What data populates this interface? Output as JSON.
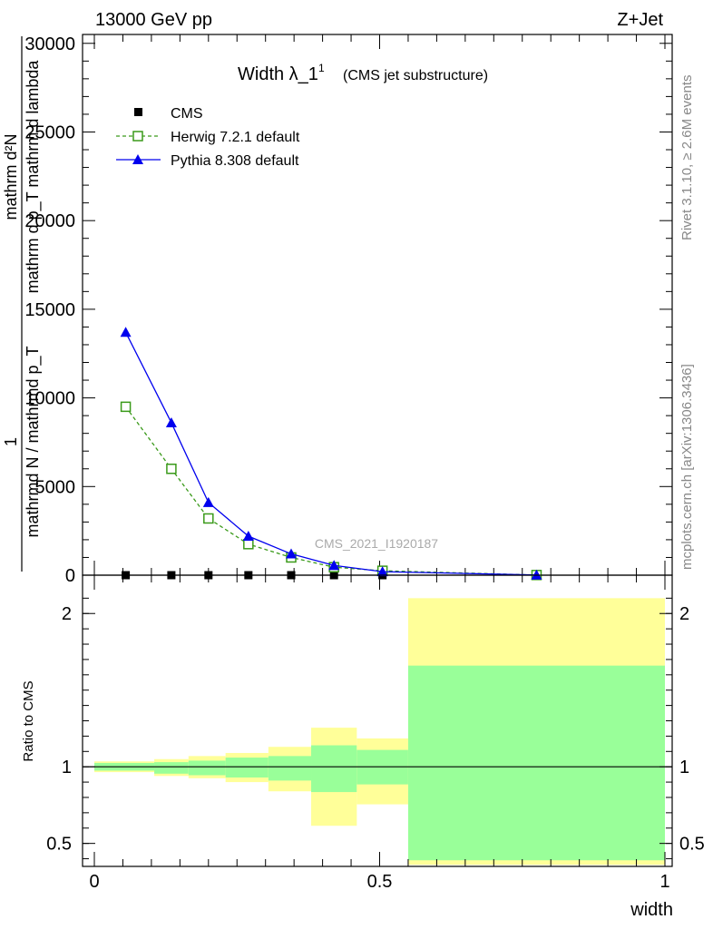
{
  "header": {
    "left": "13000 GeV pp",
    "right": "Z+Jet"
  },
  "side": {
    "rivet": "Rivet 3.1.10, ≥ 2.6M events",
    "mcplots": "mcplots.cern.ch [arXiv:1306.3436]"
  },
  "chart_data": [
    {
      "type": "line",
      "title": "Width λ_1",
      "title_sup": "1",
      "subtitle": "(CMS jet substructure)",
      "watermark": "CMS_2021_I1920187",
      "ylabel_numerator": "mathrm d²N",
      "ylabel_denominator": "mathrm d p_T mathrm d lambda",
      "ylabel_left_num": "1",
      "ylabel_left_den": "mathrmd N / mathrmd p_T",
      "xlim": [
        0,
        1
      ],
      "ylim": [
        0,
        30500
      ],
      "yticks": [
        0,
        5000,
        10000,
        15000,
        20000,
        25000,
        30000
      ],
      "ytick_labels": [
        "0",
        "5000",
        "10000",
        "15000",
        "20000",
        "25000",
        "30000"
      ],
      "legend": [
        "CMS",
        "Herwig 7.2.1 default",
        "Pythia 8.308 default"
      ],
      "legend_position": "top-left",
      "series": [
        {
          "name": "CMS",
          "color": "#000000",
          "marker": "square-filled",
          "x": [
            0.055,
            0.135,
            0.2,
            0.27,
            0.345,
            0.42,
            0.505,
            0.775
          ],
          "y": [
            0,
            0,
            0,
            0,
            0,
            0,
            0,
            0
          ]
        },
        {
          "name": "Herwig 7.2.1 default",
          "color": "#3a9a1a",
          "marker": "square-open",
          "dashed": true,
          "x": [
            0.055,
            0.135,
            0.2,
            0.27,
            0.345,
            0.42,
            0.505,
            0.775
          ],
          "y": [
            9500,
            6000,
            3200,
            1750,
            1000,
            450,
            250,
            10
          ]
        },
        {
          "name": "Pythia 8.308 default",
          "color": "#0000ee",
          "marker": "triangle-filled",
          "dashed": false,
          "x": [
            0.055,
            0.135,
            0.2,
            0.27,
            0.345,
            0.42,
            0.505,
            0.775
          ],
          "y": [
            13700,
            8600,
            4100,
            2200,
            1200,
            550,
            200,
            10
          ]
        }
      ]
    },
    {
      "type": "area",
      "ylabel": "Ratio to CMS",
      "xlabel": "width",
      "xlim": [
        0,
        1
      ],
      "ylim": [
        0.35,
        2.25
      ],
      "xticks": [
        0,
        0.5,
        1
      ],
      "xtick_labels": [
        "0",
        "0.5",
        "1"
      ],
      "yticks": [
        0.5,
        1,
        2
      ],
      "ytick_labels": [
        "0.5",
        "1",
        "2"
      ],
      "band_colors": {
        "outer": "#ffff99",
        "inner": "#99ff99"
      },
      "bins": [
        {
          "x0": 0.0,
          "x1": 0.105,
          "inner": [
            0.975,
            1.025
          ],
          "outer": [
            0.965,
            1.035
          ]
        },
        {
          "x0": 0.105,
          "x1": 0.165,
          "inner": [
            0.955,
            1.03
          ],
          "outer": [
            0.94,
            1.05
          ]
        },
        {
          "x0": 0.165,
          "x1": 0.23,
          "inner": [
            0.945,
            1.04
          ],
          "outer": [
            0.925,
            1.07
          ]
        },
        {
          "x0": 0.23,
          "x1": 0.305,
          "inner": [
            0.93,
            1.06
          ],
          "outer": [
            0.9,
            1.09
          ]
        },
        {
          "x0": 0.305,
          "x1": 0.38,
          "inner": [
            0.91,
            1.07
          ],
          "outer": [
            0.84,
            1.13
          ]
        },
        {
          "x0": 0.38,
          "x1": 0.46,
          "inner": [
            0.835,
            1.14
          ],
          "outer": [
            0.615,
            1.255
          ]
        },
        {
          "x0": 0.46,
          "x1": 0.55,
          "inner": [
            0.885,
            1.11
          ],
          "outer": [
            0.755,
            1.185
          ]
        },
        {
          "x0": 0.55,
          "x1": 1.0,
          "inner": [
            0.39,
            1.66
          ],
          "outer": [
            0.36,
            2.1
          ]
        }
      ]
    }
  ]
}
